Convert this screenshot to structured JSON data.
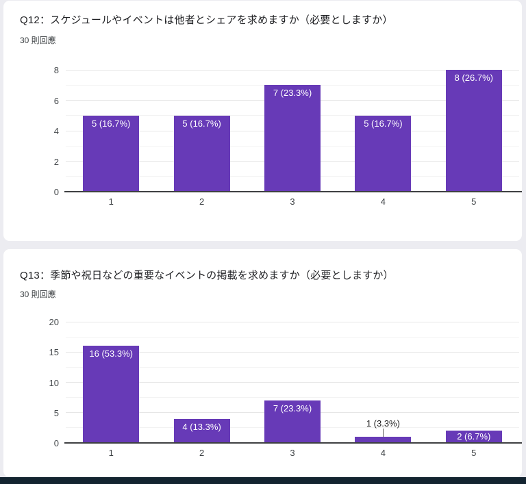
{
  "page": {
    "background_color": "#ececf1",
    "card_color": "#ffffff",
    "bottom_bar_color": "#132430"
  },
  "cards": [
    {
      "title": "Q12：スケジュールやイベントは他者とシェアを求めますか（必要としますか）",
      "responses": "30 則回應",
      "chart_data": {
        "type": "bar",
        "categories": [
          "1",
          "2",
          "3",
          "4",
          "5"
        ],
        "values": [
          5,
          5,
          7,
          5,
          8
        ],
        "labels": [
          "5 (16.7%)",
          "5 (16.7%)",
          "7 (23.3%)",
          "5 (16.7%)",
          "8 (26.7%)"
        ],
        "title": "",
        "xlabel": "",
        "ylabel": "",
        "ylim": [
          0,
          8
        ],
        "y_major_step": 2,
        "y_minor_step": 1,
        "bar_color": "#673ab7",
        "grid": true,
        "legend": "none"
      }
    },
    {
      "title": "Q13：季節や祝日などの重要なイベントの掲載を求めますか（必要としますか）",
      "responses": "30 則回應",
      "chart_data": {
        "type": "bar",
        "categories": [
          "1",
          "2",
          "3",
          "4",
          "5"
        ],
        "values": [
          16,
          4,
          7,
          1,
          2
        ],
        "labels": [
          "16 (53.3%)",
          "4 (13.3%)",
          "7 (23.3%)",
          "1 (3.3%)",
          "2 (6.7%)"
        ],
        "title": "",
        "xlabel": "",
        "ylabel": "",
        "ylim": [
          0,
          20
        ],
        "y_major_step": 5,
        "y_minor_step": 2.5,
        "bar_color": "#673ab7",
        "grid": true,
        "legend": "none"
      }
    }
  ]
}
